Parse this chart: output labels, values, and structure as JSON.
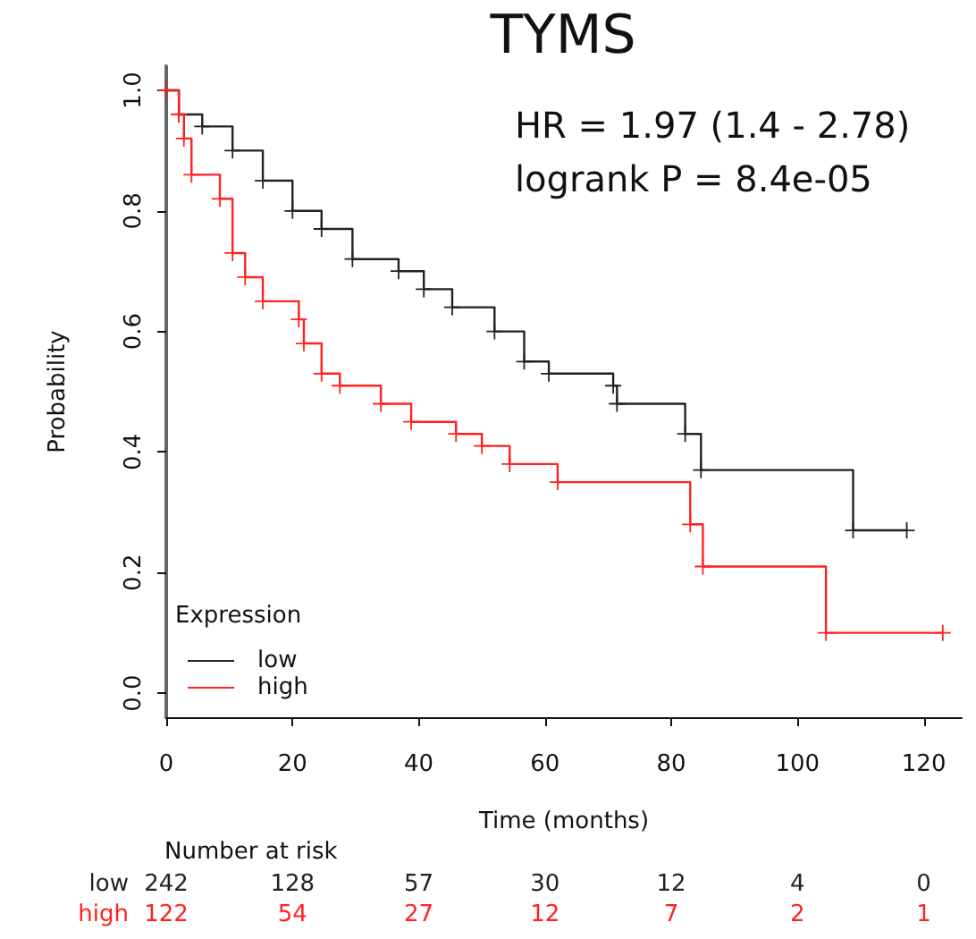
{
  "chart_data": {
    "type": "step",
    "title": "TYMS",
    "xlabel": "Time (months)",
    "ylabel": "Probability",
    "legend_title": "Expression",
    "legend": "bottom left",
    "marker": "cross",
    "line_style": "solid",
    "grid": false,
    "xlim": [
      0,
      126
    ],
    "xticks": [
      0,
      20,
      40,
      60,
      80,
      100,
      120
    ],
    "ylim": [
      -0.04,
      1.04
    ],
    "yticks": [
      {
        "value": 0,
        "label": "0.0"
      },
      0.2,
      0.4,
      0.6,
      0.8,
      {
        "value": 1,
        "label": "1.0"
      }
    ],
    "series": [
      {
        "name": "low",
        "color": "#222222",
        "x": [
          0,
          2,
          5.7,
          10.5,
          15.3,
          20,
          24.6,
          29.5,
          36.8,
          40.8,
          45.3,
          52,
          56.7,
          60.6,
          70.8,
          71.4,
          82.2,
          84.7,
          108.8,
          117.3
        ],
        "values": [
          1,
          0.96,
          0.94,
          0.9,
          0.85,
          0.8,
          0.77,
          0.72,
          0.7,
          0.67,
          0.64,
          0.6,
          0.55,
          0.53,
          0.51,
          0.48,
          0.43,
          0.37,
          0.27,
          0.27
        ]
      },
      {
        "name": "high",
        "color": "#ff2222",
        "x": [
          0,
          2,
          2.8,
          4,
          8.5,
          10.5,
          12.5,
          15.3,
          21,
          21.8,
          24.6,
          27.5,
          34,
          38.8,
          45.9,
          50,
          54.4,
          62,
          83,
          85,
          104.5,
          123
        ],
        "values": [
          1,
          0.96,
          0.92,
          0.86,
          0.82,
          0.73,
          0.69,
          0.65,
          0.62,
          0.58,
          0.53,
          0.51,
          0.48,
          0.45,
          0.43,
          0.41,
          0.38,
          0.35,
          0.28,
          0.21,
          0.1,
          0.1
        ]
      }
    ],
    "annotations": [
      "HR = 1.97 (1.4 - 2.78)",
      "logrank P = 8.4e-05",
      "Number at risk",
      "242",
      "128",
      "57",
      "30",
      "12",
      "4",
      "0",
      "122",
      "54",
      "27",
      "12",
      "7",
      "2",
      "1"
    ]
  }
}
